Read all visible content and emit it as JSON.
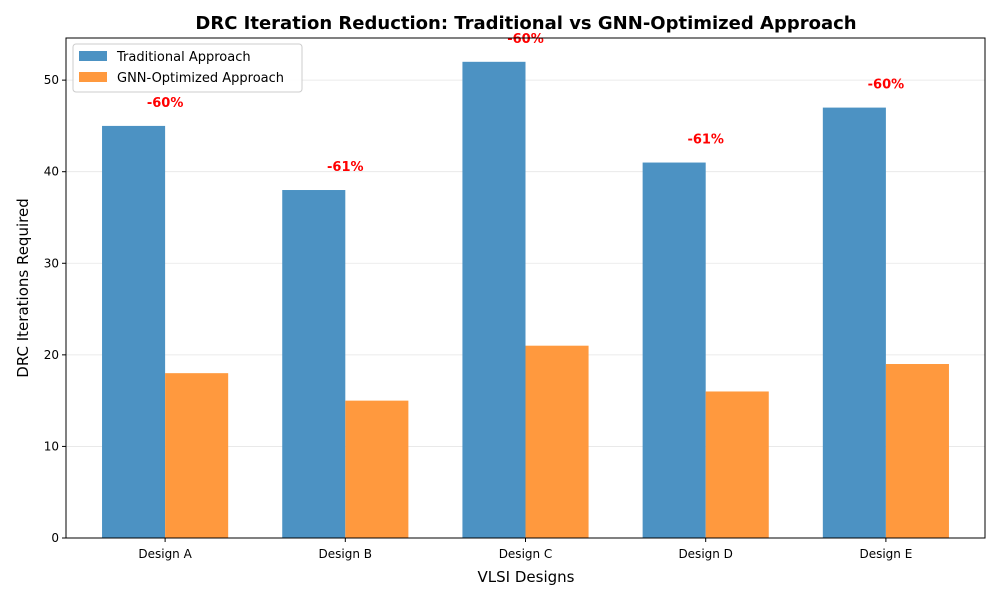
{
  "chart_data": {
    "type": "bar",
    "title": "DRC Iteration Reduction: Traditional vs GNN-Optimized Approach",
    "xlabel": "VLSI Designs",
    "ylabel": "DRC Iterations Required",
    "categories": [
      "Design A",
      "Design B",
      "Design C",
      "Design D",
      "Design E"
    ],
    "series": [
      {
        "name": "Traditional Approach",
        "values": [
          45,
          38,
          52,
          41,
          47
        ],
        "color": "#4c92c3"
      },
      {
        "name": "GNN-Optimized Approach",
        "values": [
          18,
          15,
          21,
          16,
          19
        ],
        "color": "#ff993e"
      }
    ],
    "annotations": [
      "-60%",
      "-61%",
      "-60%",
      "-61%",
      "-60%"
    ],
    "annotation_color": "#ff0000",
    "ylim": [
      0,
      54.6
    ],
    "yticks": [
      0,
      10,
      20,
      30,
      40,
      50
    ],
    "grid": true,
    "legend_position": "top-left"
  }
}
